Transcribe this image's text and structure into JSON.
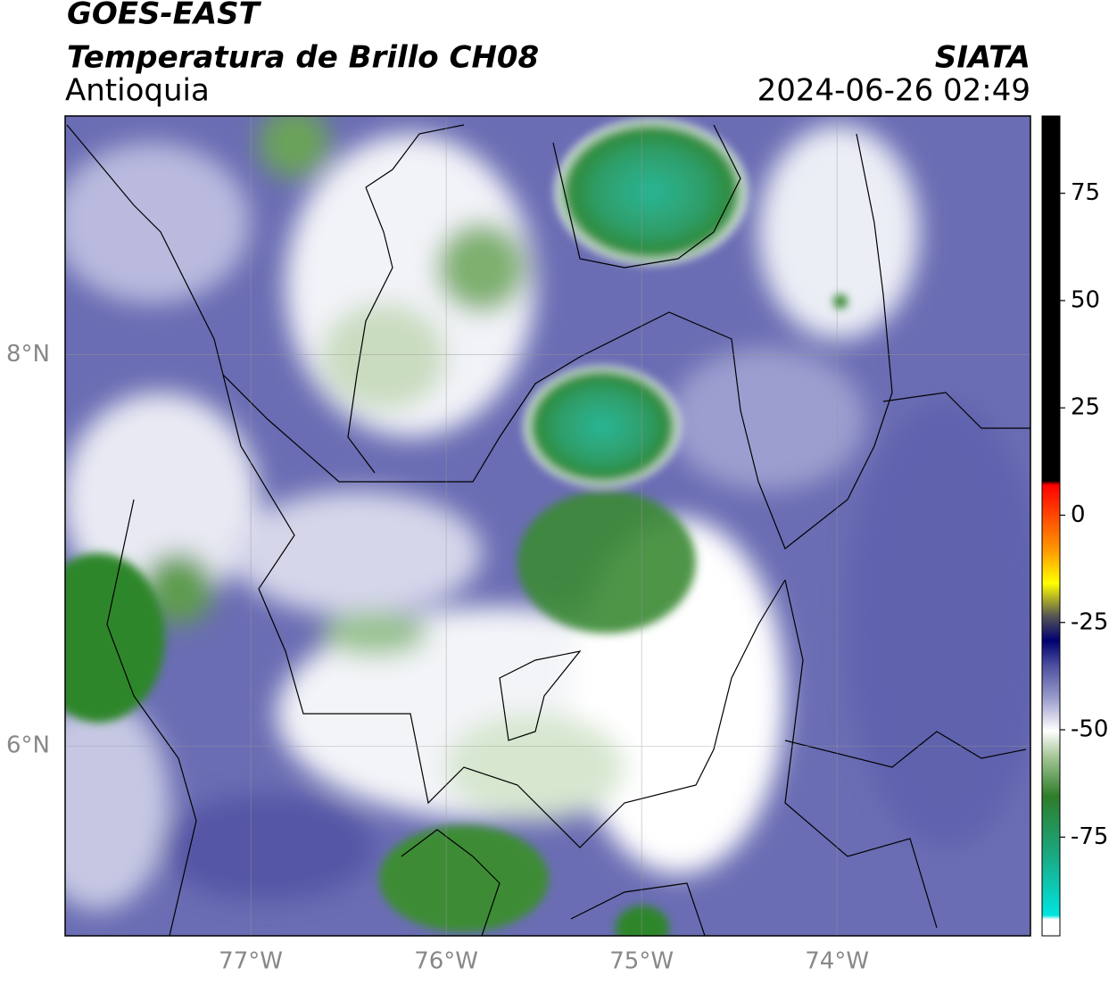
{
  "header": {
    "title": "GOES-EAST",
    "subtitle": "Temperatura de Brillo CH08",
    "region": "Antioquia",
    "source": "SIATA",
    "timestamp": "2024-06-26 02:49"
  },
  "map": {
    "xlim": [
      -77.95,
      -73.01
    ],
    "ylim": [
      5.03,
      9.22
    ],
    "xticks": [
      {
        "value": -77,
        "label": "77°W"
      },
      {
        "value": -76,
        "label": "76°W"
      },
      {
        "value": -75,
        "label": "75°W"
      },
      {
        "value": -74,
        "label": "74°W"
      }
    ],
    "yticks": [
      {
        "value": 8,
        "label": "8°N"
      },
      {
        "value": 6,
        "label": "6°N"
      }
    ],
    "grid": true
  },
  "colorbar": {
    "lim": [
      -98,
      93
    ],
    "ticks": [
      75,
      50,
      25,
      0,
      -25,
      -50,
      -75
    ]
  }
}
